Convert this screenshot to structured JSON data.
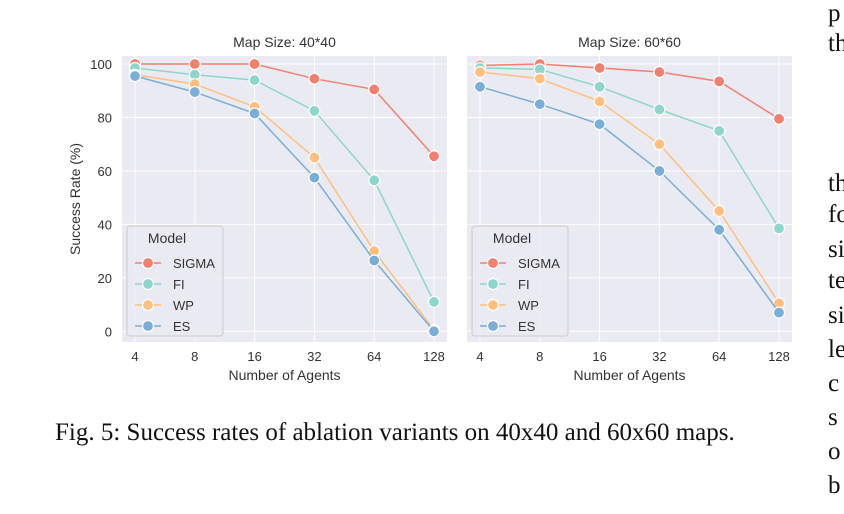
{
  "figure": {
    "caption": "Fig. 5: Success rates of ablation variants on 40x40 and 60x60 maps.",
    "ylabel": "Success Rate (%)",
    "legend_title": "Model",
    "side_fragments": [
      "p",
      "th",
      "th",
      "fo",
      "si",
      "te",
      "si",
      "le",
      "c",
      "s",
      "o",
      "b"
    ]
  },
  "colors": {
    "SIGMA": "#f08070",
    "FI": "#8ed6cc",
    "WP": "#ffbf80",
    "ES": "#7aaed6",
    "plot_bg": "#eaeaf2"
  },
  "chart_data": [
    {
      "type": "line",
      "title": "Map Size: 40*40",
      "xlabel": "Number of Agents",
      "ylabel": "Success Rate (%)",
      "categories": [
        "4",
        "8",
        "16",
        "32",
        "64",
        "128"
      ],
      "ylim": [
        -4,
        103
      ],
      "yticks": [
        0,
        20,
        40,
        60,
        80,
        100
      ],
      "grid": true,
      "legend": "lower-left",
      "series": [
        {
          "name": "SIGMA",
          "values": [
            100,
            100,
            100,
            94.5,
            90.5,
            65.5
          ]
        },
        {
          "name": "FI",
          "values": [
            98.5,
            96,
            94,
            82.5,
            56.5,
            11
          ]
        },
        {
          "name": "WP",
          "values": [
            96,
            92.5,
            84,
            65,
            30,
            0.5
          ]
        },
        {
          "name": "ES",
          "values": [
            95.5,
            89.5,
            81.5,
            57.5,
            26.5,
            0
          ]
        }
      ]
    },
    {
      "type": "line",
      "title": "Map Size: 60*60",
      "xlabel": "Number of Agents",
      "ylabel": "",
      "categories": [
        "4",
        "8",
        "16",
        "32",
        "64",
        "128"
      ],
      "ylim": [
        -4,
        103
      ],
      "yticks": [
        0,
        20,
        40,
        60,
        80,
        100
      ],
      "grid": true,
      "legend": "lower-left",
      "series": [
        {
          "name": "SIGMA",
          "values": [
            99.5,
            100,
            98.5,
            97,
            93.5,
            79.5
          ]
        },
        {
          "name": "FI",
          "values": [
            98.5,
            98,
            91.5,
            83,
            75,
            38.5
          ]
        },
        {
          "name": "WP",
          "values": [
            97,
            94.5,
            86,
            70,
            45,
            10.5
          ]
        },
        {
          "name": "ES",
          "values": [
            91.5,
            85,
            77.5,
            60,
            38,
            7
          ]
        }
      ]
    }
  ]
}
